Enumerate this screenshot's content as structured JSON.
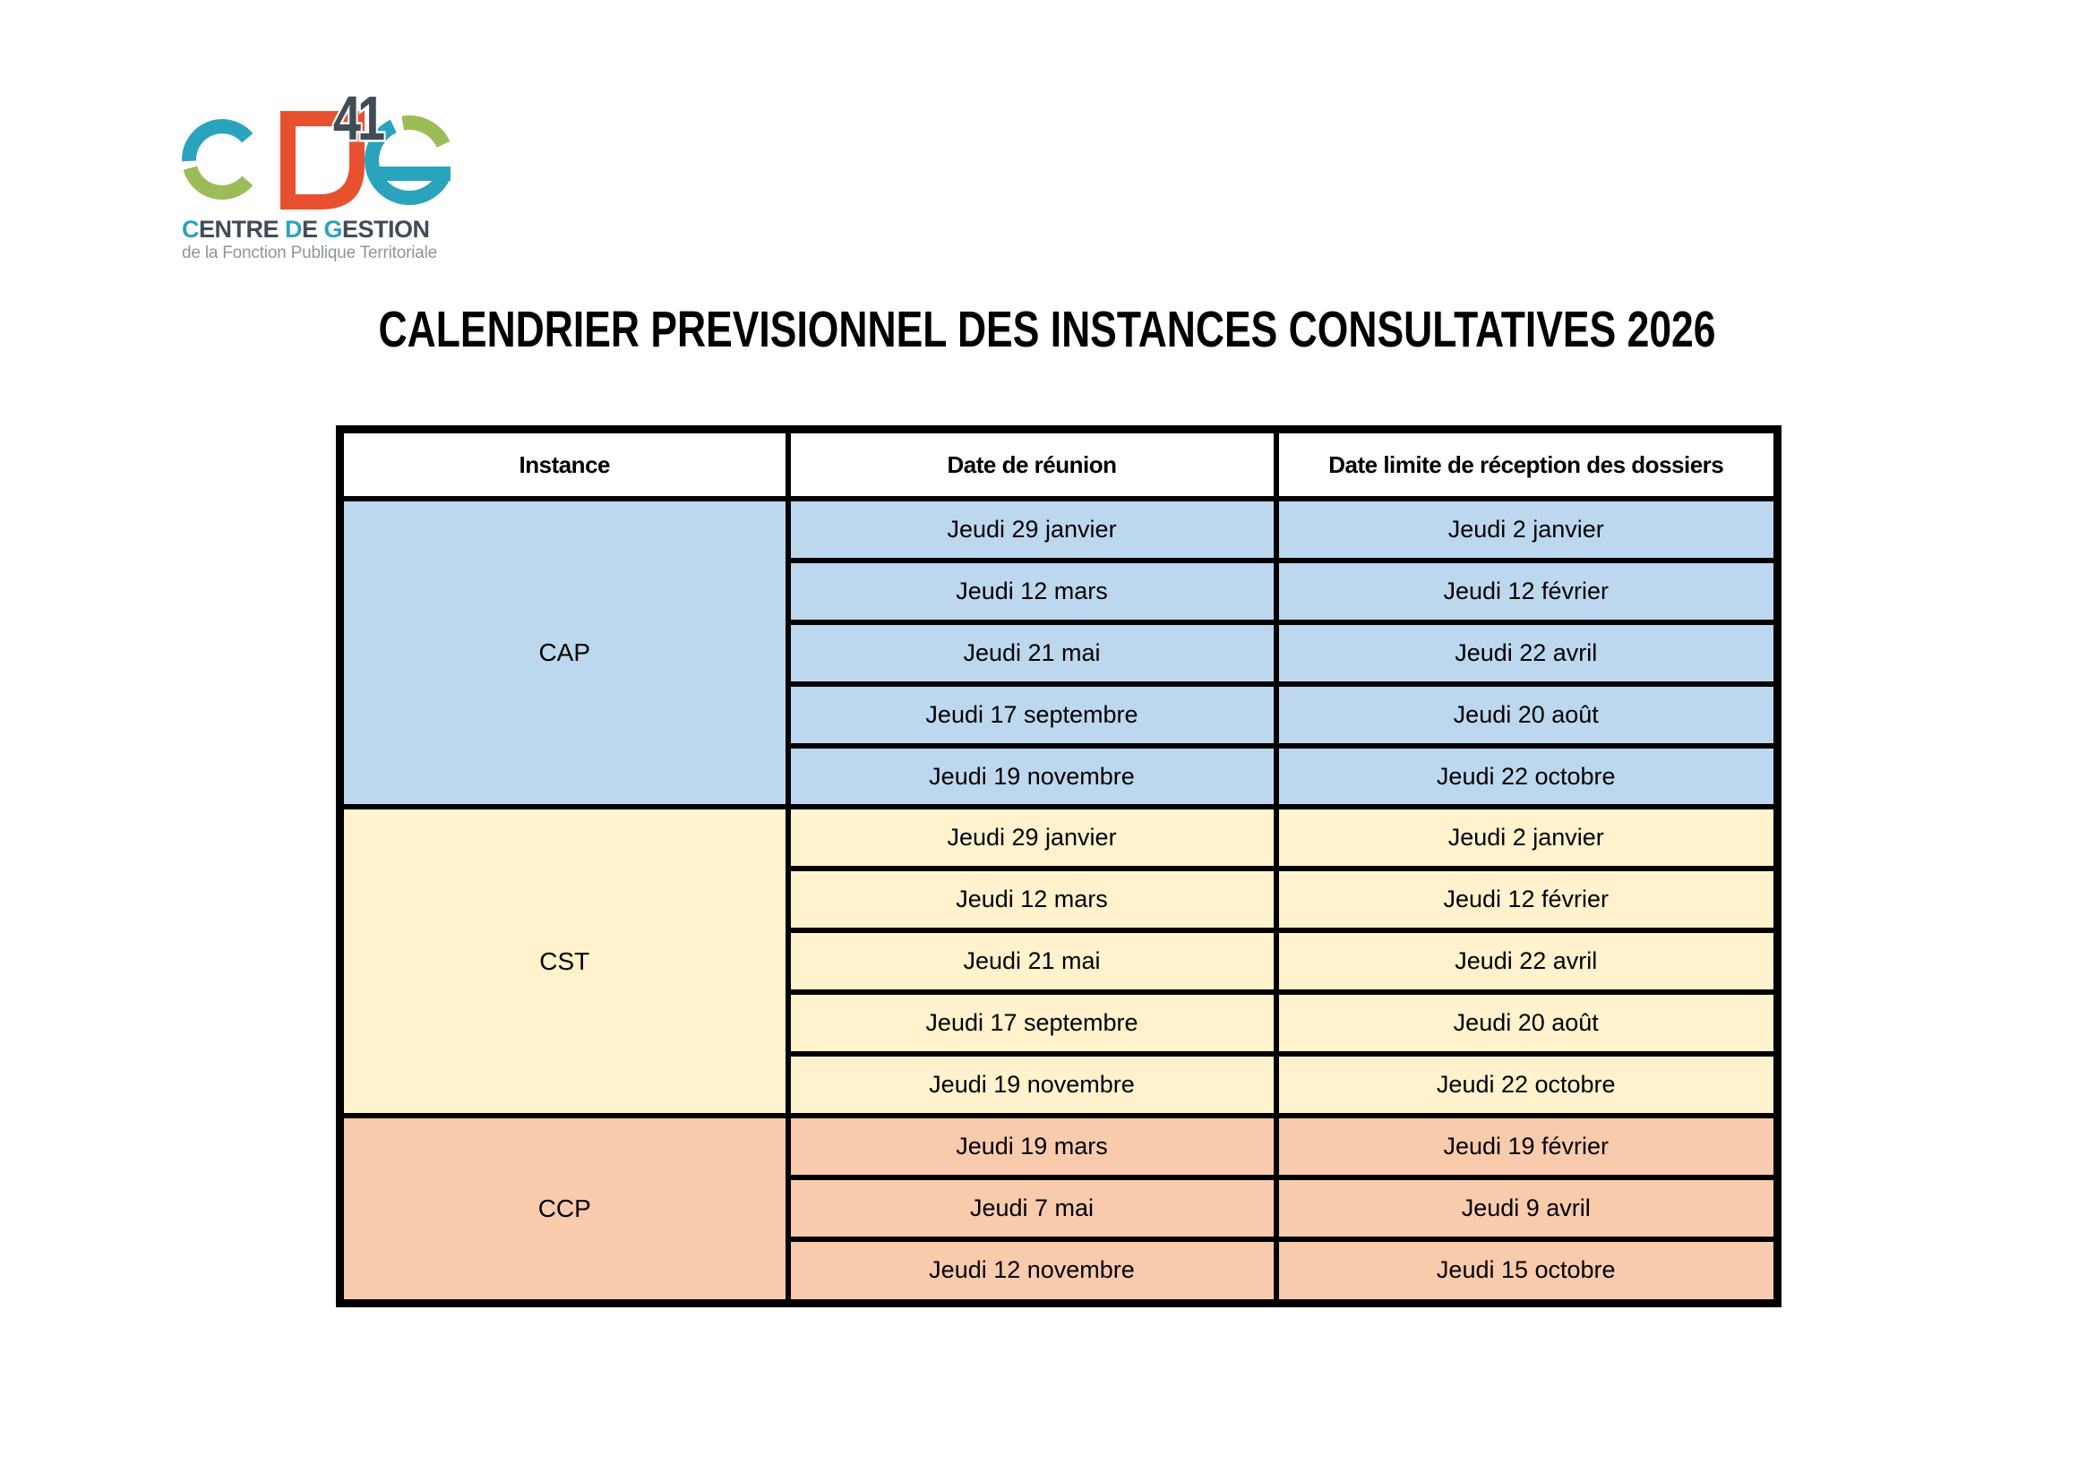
{
  "logo": {
    "number": "41",
    "name_segments": [
      {
        "text": "C",
        "teal": true
      },
      {
        "text": "ENTRE ",
        "teal": false
      },
      {
        "text": "D",
        "teal": true
      },
      {
        "text": "E ",
        "teal": false
      },
      {
        "text": "G",
        "teal": true
      },
      {
        "text": "ESTION",
        "teal": false
      }
    ],
    "subtitle": "de la Fonction Publique Territoriale"
  },
  "title": "CALENDRIER PREVISIONNEL DES INSTANCES CONSULTATIVES 2026",
  "table": {
    "headers": [
      "Instance",
      "Date de réunion",
      "Date limite de réception des dossiers"
    ],
    "sections": [
      {
        "instance": "CAP",
        "bg": "#BDD7EE",
        "rows": [
          [
            "Jeudi 29 janvier",
            "Jeudi 2 janvier"
          ],
          [
            "Jeudi 12 mars",
            "Jeudi 12 février"
          ],
          [
            "Jeudi 21 mai",
            "Jeudi 22 avril"
          ],
          [
            "Jeudi 17 septembre",
            "Jeudi 20 août"
          ],
          [
            "Jeudi 19 novembre",
            "Jeudi 22 octobre"
          ]
        ]
      },
      {
        "instance": "CST",
        "bg": "#FFF2CC",
        "rows": [
          [
            "Jeudi 29 janvier",
            "Jeudi 2 janvier"
          ],
          [
            "Jeudi 12 mars",
            "Jeudi 12 février"
          ],
          [
            "Jeudi 21 mai",
            "Jeudi 22 avril"
          ],
          [
            "Jeudi 17 septembre",
            "Jeudi 20 août"
          ],
          [
            "Jeudi 19 novembre",
            "Jeudi 22 octobre"
          ]
        ]
      },
      {
        "instance": "CCP",
        "bg": "#F8CBAD",
        "rows": [
          [
            "Jeudi 19 mars",
            "Jeudi 19 février"
          ],
          [
            "Jeudi 7 mai",
            "Jeudi 9 avril"
          ],
          [
            "Jeudi 12 novembre",
            "Jeudi 15 octobre"
          ]
        ]
      }
    ]
  },
  "colors": {
    "teal": "#2AA4BC",
    "green": "#9BBD58",
    "red": "#E8512F",
    "slate": "#414C58",
    "subtitle_gray": "#8F959B",
    "cap_bg": "#BDD7EE",
    "cst_bg": "#FFF2CC",
    "ccp_bg": "#F8CBAD",
    "border": "#000000"
  }
}
